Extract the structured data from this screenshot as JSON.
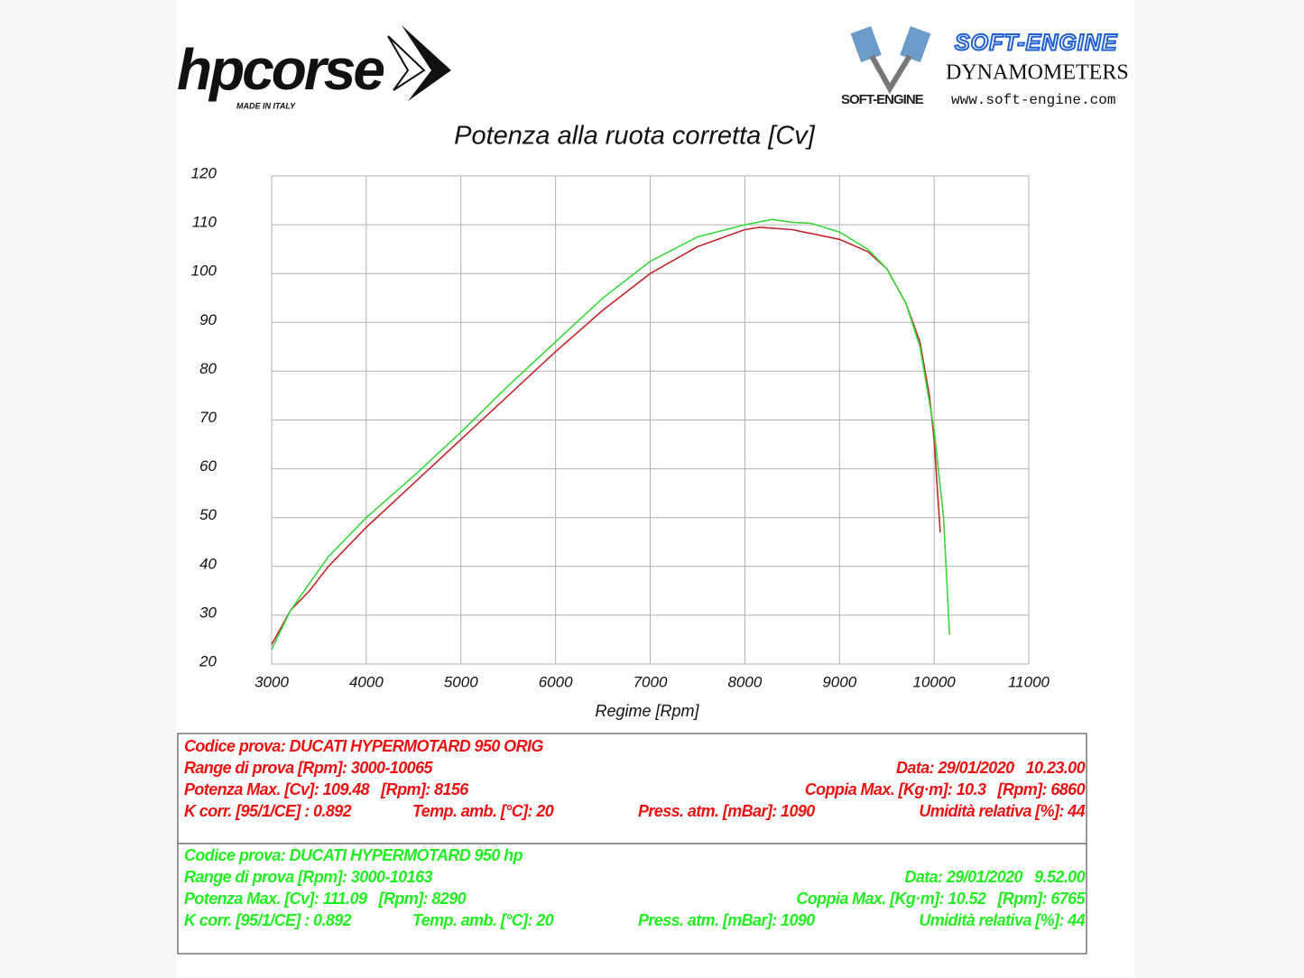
{
  "logos": {
    "brand": "hpcorse",
    "brand_tagline": "MADE IN ITALY",
    "dyno_name": "SOFT-ENGINE",
    "dyno_title": "DYNAMOMETERS",
    "dyno_badge": "SOFT-ENGINE",
    "dyno_url": "www.soft-engine.com"
  },
  "chart_data": {
    "type": "line",
    "title": "Potenza alla ruota corretta [Cv]",
    "x_label": "Regime [Rpm]",
    "xlim": [
      3000,
      11000
    ],
    "xticks": [
      3000,
      4000,
      5000,
      6000,
      7000,
      8000,
      9000,
      10000,
      11000
    ],
    "ylim": [
      20,
      120
    ],
    "yticks": [
      20,
      30,
      40,
      50,
      60,
      70,
      80,
      90,
      100,
      110,
      120
    ],
    "grid": true,
    "series": [
      {
        "name": "DUCATI HYPERMOTARD 950 ORIG",
        "color": "#c0282e",
        "x": [
          3000,
          3200,
          3400,
          3600,
          4000,
          4500,
          5000,
          5500,
          6000,
          6500,
          7000,
          7500,
          8000,
          8156,
          8500,
          9000,
          9300,
          9500,
          9700,
          9850,
          9950,
          10000,
          10065
        ],
        "values": [
          24,
          31,
          35,
          40,
          48,
          57,
          66,
          75,
          84,
          92.5,
          100,
          105.5,
          109,
          109.48,
          109,
          107,
          104.5,
          101,
          94,
          86,
          75,
          66,
          47
        ]
      },
      {
        "name": "DUCATI HYPERMOTARD 950 hp",
        "color": "#3ad63a",
        "x": [
          3000,
          3200,
          3400,
          3600,
          4000,
          4500,
          5000,
          5500,
          6000,
          6500,
          7000,
          7500,
          8000,
          8290,
          8500,
          8700,
          9000,
          9300,
          9500,
          9700,
          9850,
          10000,
          10100,
          10163
        ],
        "values": [
          23,
          31,
          36.5,
          42,
          50,
          58.5,
          67.5,
          77,
          86,
          95,
          102.5,
          107.5,
          110,
          111.09,
          110.5,
          110.3,
          108.5,
          105,
          101,
          94,
          85,
          68,
          50,
          26
        ]
      }
    ]
  },
  "tests": [
    {
      "color": "#ee1111",
      "rows": [
        [
          "Codice prova: DUCATI HYPERMOTARD 950 ORIG"
        ],
        [
          "Range di prova [Rpm]: 3000-10065",
          "Data: 29/01/2020   10.23.00"
        ],
        [
          "Potenza Max. [Cv]: 109.48   [Rpm]: 8156",
          "Coppia Max. [Kg·m]: 10.3   [Rpm]: 6860"
        ],
        [
          "K corr. [95/1/CE] : 0.892",
          "Temp. amb. [°C]: 20",
          "Press. atm. [mBar]: 1090",
          "Umidità relativa [%]: 44"
        ]
      ]
    },
    {
      "color": "#22ee22",
      "rows": [
        [
          "Codice prova: DUCATI HYPERMOTARD 950 hp"
        ],
        [
          "Range di prova [Rpm]: 3000-10163",
          "Data: 29/01/2020   9.52.00"
        ],
        [
          "Potenza Max. [Cv]: 111.09   [Rpm]: 8290",
          "Coppia Max. [Kg·m]: 10.52   [Rpm]: 6765"
        ],
        [
          "K corr. [95/1/CE] : 0.892",
          "Temp. amb. [°C]: 20",
          "Press. atm. [mBar]: 1090",
          "Umidità relativa [%]: 44"
        ]
      ]
    }
  ]
}
